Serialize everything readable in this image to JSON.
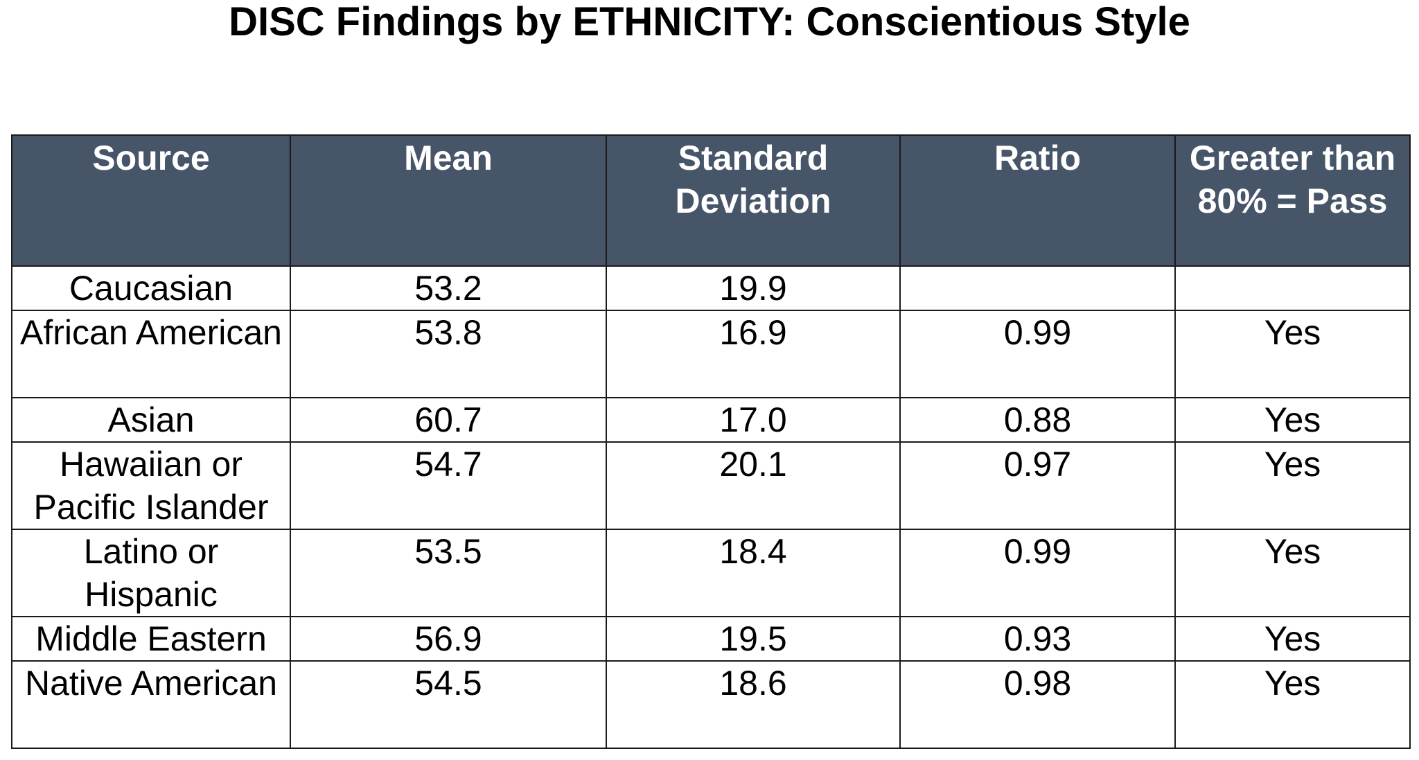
{
  "title": "DISC Findings by ETHNICITY:  Conscientious Style",
  "table": {
    "headers": [
      "Source",
      "Mean",
      "Standard Deviation",
      "Ratio",
      "Greater than 80% = Pass"
    ],
    "rows": [
      {
        "source": "Caucasian",
        "mean": "53.2",
        "sd": "19.9",
        "ratio": "",
        "pass": ""
      },
      {
        "source": "African American",
        "mean": "53.8",
        "sd": "16.9",
        "ratio": "0.99",
        "pass": "Yes"
      },
      {
        "source": "Asian",
        "mean": "60.7",
        "sd": "17.0",
        "ratio": "0.88",
        "pass": "Yes"
      },
      {
        "source": "Hawaiian or Pacific Islander",
        "mean": "54.7",
        "sd": "20.1",
        "ratio": "0.97",
        "pass": "Yes"
      },
      {
        "source": "Latino or Hispanic",
        "mean": "53.5",
        "sd": "18.4",
        "ratio": "0.99",
        "pass": "Yes"
      },
      {
        "source": "Middle Eastern",
        "mean": "56.9",
        "sd": "19.5",
        "ratio": "0.93",
        "pass": "Yes"
      },
      {
        "source": "Native American",
        "mean": "54.5",
        "sd": "18.6",
        "ratio": "0.98",
        "pass": "Yes"
      }
    ]
  },
  "colors": {
    "header_background": "#475569",
    "header_text": "#ffffff",
    "border": "#1a1a1a"
  }
}
